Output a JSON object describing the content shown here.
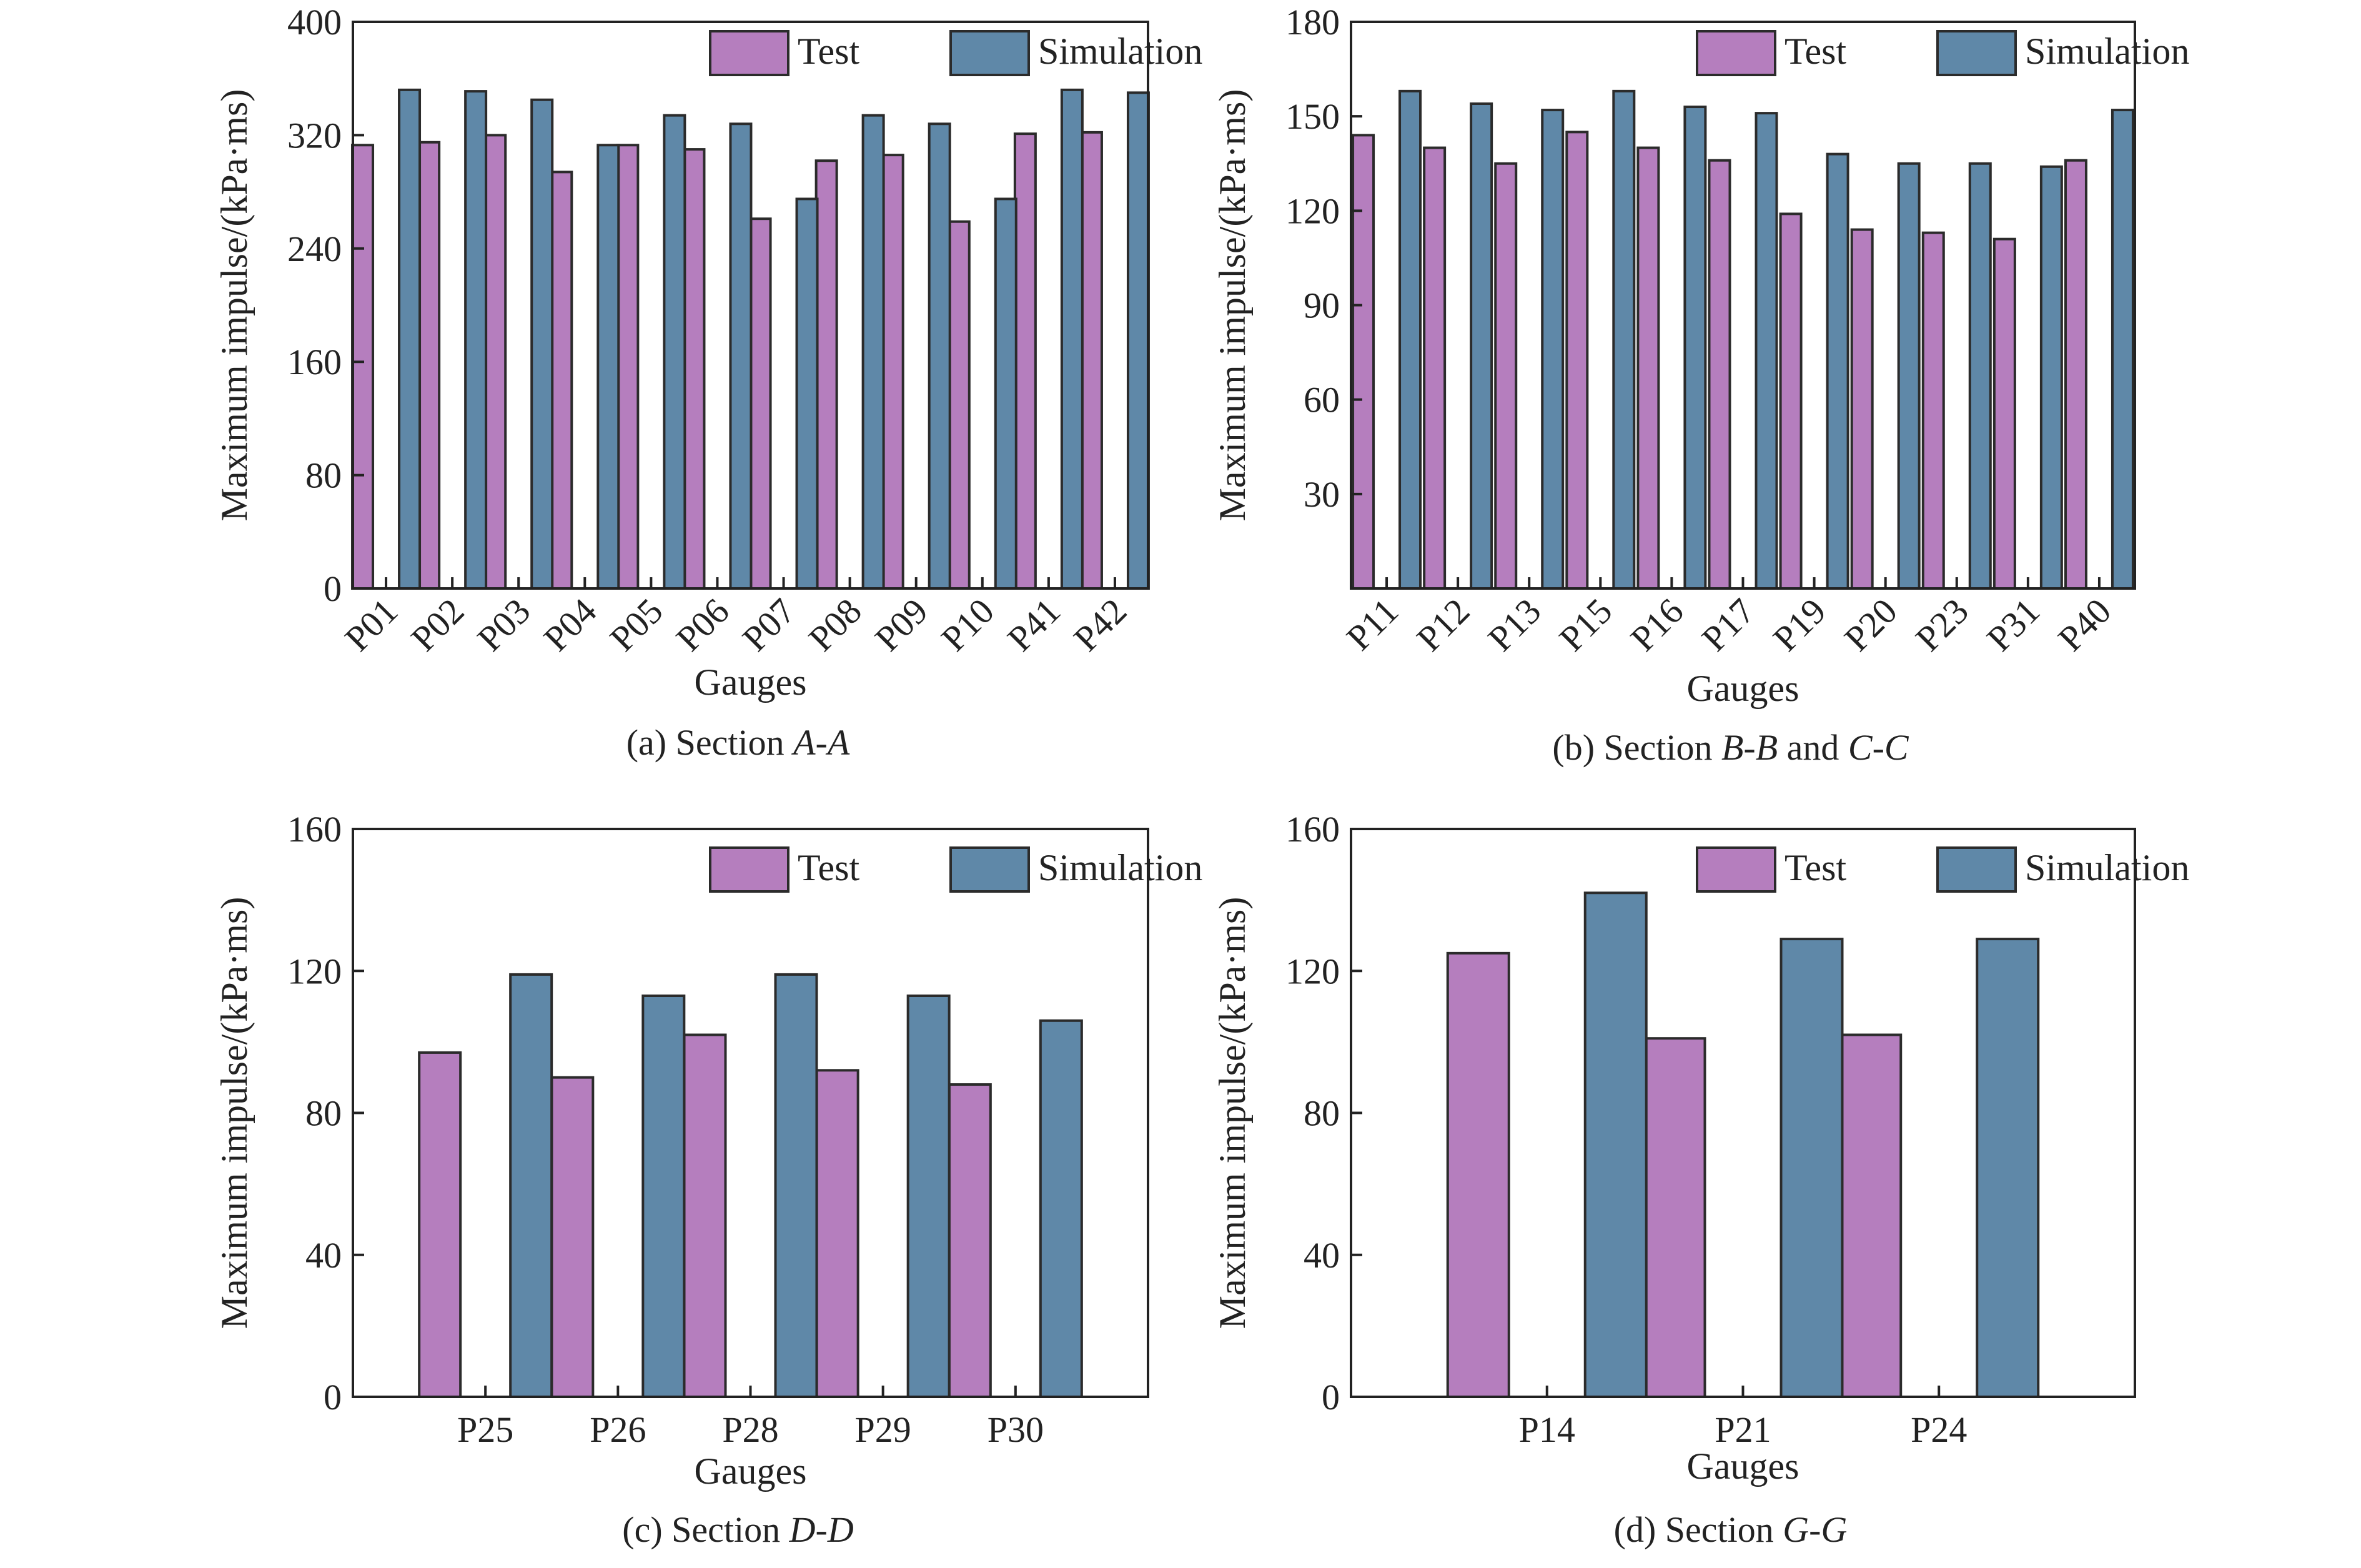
{
  "colors": {
    "test": "#B57EBE",
    "simulation": "#5F88A8"
  },
  "charts": [
    {
      "caption": {
        "prefix": "(a) Section ",
        "italic": "A-A",
        "suffix": ""
      },
      "chart_data": {
        "type": "bar",
        "xlabel": "Gauges",
        "ylabel": "Maximum impulse/(kPa·ms)",
        "ylim": [
          0,
          400
        ],
        "yticks": [
          "0",
          "80",
          "160",
          "240",
          "320",
          "400"
        ],
        "tick_rotation": -45,
        "legend": "top-right",
        "categories": [
          "P01",
          "P02",
          "P03",
          "P04",
          "P05",
          "P06",
          "P07",
          "P08",
          "P09",
          "P10",
          "P41",
          "P42"
        ],
        "series": [
          {
            "name": "Test",
            "values": [
              313,
              315,
              320,
              294,
              313,
              310,
              261,
              302,
              306,
              259,
              321,
              322
            ]
          },
          {
            "name": "Simulation",
            "values": [
              352,
              351,
              345,
              313,
              334,
              328,
              275,
              334,
              328,
              275,
              352,
              350
            ]
          }
        ]
      }
    },
    {
      "caption": {
        "prefix": "(b) Section ",
        "italic": "B-B",
        "suffix": " and ",
        "italic2": "C-C"
      },
      "chart_data": {
        "type": "bar",
        "xlabel": "Gauges",
        "ylabel": "Maximum impulse/(kPa·ms)",
        "ylim": [
          0,
          180
        ],
        "yticks": [
          "",
          "30",
          "60",
          "90",
          "120",
          "150",
          "180"
        ],
        "tick_rotation": -45,
        "legend": "top-right",
        "categories": [
          "P11",
          "P12",
          "P13",
          "P15",
          "P16",
          "P17",
          "P19",
          "P20",
          "P23",
          "P31",
          "P40"
        ],
        "series": [
          {
            "name": "Test",
            "values": [
              144,
              140,
              135,
              145,
              140,
              136,
              119,
              114,
              113,
              111,
              136
            ]
          },
          {
            "name": "Simulation",
            "values": [
              158,
              154,
              152,
              158,
              153,
              151,
              138,
              135,
              135,
              134,
              152
            ]
          }
        ]
      }
    },
    {
      "caption": {
        "prefix": "(c) Section ",
        "italic": "D-D",
        "suffix": ""
      },
      "chart_data": {
        "type": "bar",
        "xlabel": "Gauges",
        "ylabel": "Maximum impulse/(kPa·ms)",
        "ylim": [
          0,
          160
        ],
        "yticks": [
          "0",
          "40",
          "80",
          "120",
          "160"
        ],
        "tick_rotation": 0,
        "legend": "top-right",
        "categories": [
          "P25",
          "P26",
          "P28",
          "P29",
          "P30"
        ],
        "series": [
          {
            "name": "Test",
            "values": [
              97,
              90,
              102,
              92,
              88
            ]
          },
          {
            "name": "Simulation",
            "values": [
              119,
              113,
              119,
              113,
              106
            ]
          }
        ]
      }
    },
    {
      "caption": {
        "prefix": "(d) Section ",
        "italic": "G-G",
        "suffix": ""
      },
      "chart_data": {
        "type": "bar",
        "xlabel": "Gauges",
        "ylabel": "Maximum impulse/(kPa·ms)",
        "ylim": [
          0,
          160
        ],
        "yticks": [
          "0",
          "40",
          "80",
          "120",
          "160"
        ],
        "tick_rotation": 0,
        "legend": "top-right",
        "categories": [
          "P14",
          "P21",
          "P24"
        ],
        "series": [
          {
            "name": "Test",
            "values": [
              125,
              101,
              102
            ]
          },
          {
            "name": "Simulation",
            "values": [
              142,
              129,
              129
            ]
          }
        ]
      }
    }
  ]
}
